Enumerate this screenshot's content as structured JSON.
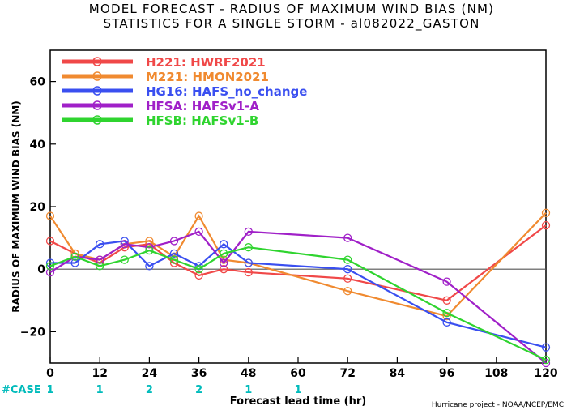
{
  "titles": {
    "line1": "MODEL FORECAST - RADIUS OF MAXIMUM WIND BIAS (NM)",
    "line2": "STATISTICS FOR A SINGLE STORM - al082022_GASTON"
  },
  "footer": {
    "case_label": "#CASE",
    "case_color": "#00bbbb",
    "credit": "Hurricane project - NOAA/NCEP/EMC"
  },
  "chart_data": {
    "type": "line",
    "xlabel": "Forecast lead time (hr)",
    "ylabel": "RADIUS OF MAXIMUM WIND BIAS (NM)",
    "xlim": [
      0,
      120
    ],
    "ylim": [
      -30,
      70
    ],
    "xticks": [
      0,
      12,
      24,
      36,
      48,
      60,
      72,
      84,
      96,
      108,
      120
    ],
    "yticks": [
      -20,
      0,
      20,
      40,
      60
    ],
    "zero_line": true,
    "legend_position": "top-left",
    "cases": [
      {
        "x": 0,
        "n": "1"
      },
      {
        "x": 12,
        "n": "1"
      },
      {
        "x": 24,
        "n": "2"
      },
      {
        "x": 36,
        "n": "2"
      },
      {
        "x": 48,
        "n": "1"
      },
      {
        "x": 60,
        "n": "1"
      }
    ],
    "series": [
      {
        "name": "H221: HWRF2021",
        "color": "#f04848",
        "x": [
          0,
          6,
          12,
          18,
          24,
          30,
          36,
          42,
          48,
          72,
          96,
          120
        ],
        "y": [
          9,
          5,
          2,
          7,
          8,
          2,
          -2,
          0,
          -1,
          -3,
          -10,
          14
        ]
      },
      {
        "name": "M221: HMON2021",
        "color": "#f08a30",
        "x": [
          0,
          6,
          12,
          18,
          24,
          30,
          36,
          42,
          48,
          72,
          96,
          120
        ],
        "y": [
          17,
          5,
          3,
          8,
          9,
          4,
          17,
          3,
          2,
          -7,
          -15,
          18
        ]
      },
      {
        "name": "HG16: HAFS_no_change",
        "color": "#3a4ff0",
        "x": [
          0,
          6,
          12,
          18,
          24,
          30,
          36,
          42,
          48,
          72,
          96,
          120
        ],
        "y": [
          2,
          2,
          8,
          9,
          1,
          5,
          1,
          8,
          2,
          0,
          -17,
          -25
        ]
      },
      {
        "name": "HFSA: HAFSv1-A",
        "color": "#a020c8",
        "x": [
          0,
          6,
          12,
          18,
          24,
          30,
          36,
          42,
          48,
          72,
          96,
          120
        ],
        "y": [
          -1,
          4,
          3,
          8,
          7,
          9,
          12,
          2,
          12,
          10,
          -4,
          -30
        ]
      },
      {
        "name": "HFSB: HAFSv1-B",
        "color": "#2fd42f",
        "x": [
          0,
          6,
          12,
          18,
          24,
          30,
          36,
          42,
          48,
          72,
          96,
          120
        ],
        "y": [
          1,
          4,
          1,
          3,
          6,
          3,
          0,
          5,
          7,
          3,
          -14,
          -29
        ]
      }
    ]
  }
}
